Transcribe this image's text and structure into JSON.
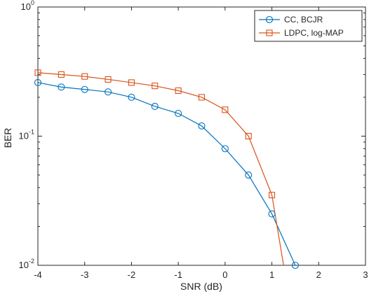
{
  "chart_data": {
    "type": "line",
    "title": "",
    "xlabel": "SNR (dB)",
    "ylabel": "BER",
    "xlim": [
      -4,
      3
    ],
    "ylim": [
      0.01,
      1
    ],
    "yscale": "log",
    "grid": false,
    "legend_position": "top-right",
    "x_ticks": [
      -4,
      -3,
      -2,
      -1,
      0,
      1,
      2,
      3
    ],
    "x_tick_labels": [
      "-4",
      "-3",
      "-2",
      "-1",
      "0",
      "1",
      "2",
      "3"
    ],
    "y_ticks": [
      {
        "base": "10",
        "exp": "-2",
        "value": 0.01
      },
      {
        "base": "10",
        "exp": "-1",
        "value": 0.1
      },
      {
        "base": "10",
        "exp": "0",
        "value": 1
      }
    ],
    "series": [
      {
        "name": "CC, BCJR",
        "color": "#0072BD",
        "marker": "circle",
        "x": [
          -4,
          -3.5,
          -3,
          -2.5,
          -2,
          -1.5,
          -1,
          -0.5,
          0,
          0.5,
          1,
          1.5
        ],
        "y": [
          0.26,
          0.24,
          0.23,
          0.22,
          0.2,
          0.17,
          0.15,
          0.12,
          0.08,
          0.05,
          0.025,
          0.01
        ]
      },
      {
        "name": "LDPC, log-MAP",
        "color": "#D95319",
        "marker": "square",
        "x": [
          -4,
          -3.5,
          -3,
          -2.5,
          -2,
          -1.5,
          -1,
          -0.5,
          0,
          0.5,
          1,
          1.25
        ],
        "y": [
          0.31,
          0.3,
          0.29,
          0.275,
          0.26,
          0.245,
          0.225,
          0.2,
          0.16,
          0.1,
          0.035,
          0.01
        ],
        "markers_shown": 11
      }
    ]
  }
}
